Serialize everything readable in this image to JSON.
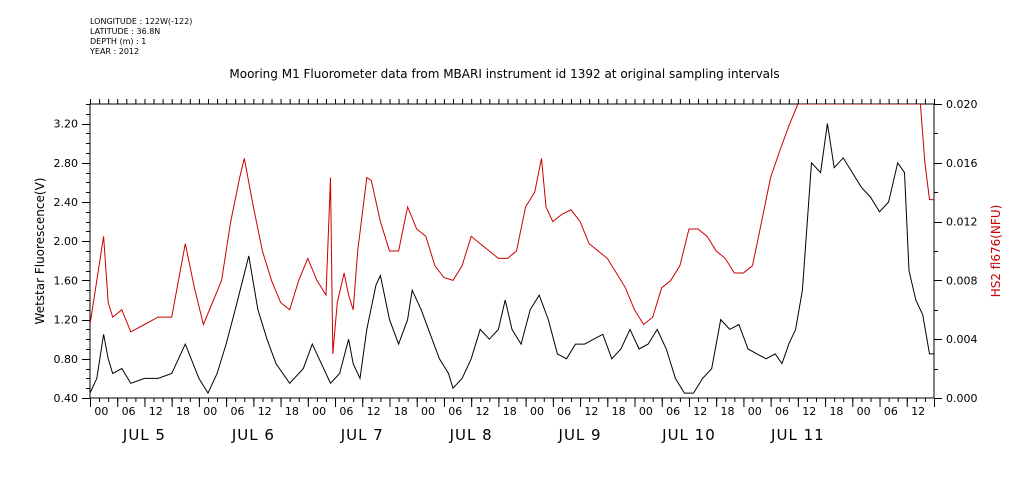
{
  "header": {
    "meta_lines": [
      "LONGITUDE : 122W(-122)",
      "LATITUDE : 36.8N",
      "DEPTH (m) : 1",
      "YEAR : 2012"
    ]
  },
  "chart_data": {
    "type": "line",
    "title": "Mooring M1 Fluorometer data from MBARI instrument id 1392 at original sampling intervals",
    "ylabel_left": "Wetstar Fluorescence(V)",
    "ylabel_right": "HS2 fl676(NFU)",
    "ylim_left": [
      0.4,
      3.4
    ],
    "yticks_left": [
      "0.40",
      "0.80",
      "1.20",
      "1.60",
      "2.00",
      "2.40",
      "2.80",
      "3.20"
    ],
    "ylim_right": [
      0.0,
      0.02
    ],
    "yticks_right": [
      "0.000",
      "0.004",
      "0.008",
      "0.012",
      "0.016",
      "0.020"
    ],
    "xlim_hours": [
      0,
      168
    ],
    "hour_ticks": [
      "00",
      "06",
      "12",
      "18"
    ],
    "days": [
      "JUL 5",
      "JUL 6",
      "JUL 7",
      "JUL 8",
      "JUL 9",
      "JUL 10",
      "JUL 11"
    ],
    "colors": {
      "wetstar": "#000000",
      "hs2": "#cc0000"
    },
    "series": [
      {
        "axis": "left",
        "points": [
          [
            0,
            0.45
          ],
          [
            1.5,
            0.6
          ],
          [
            3,
            1.05
          ],
          [
            4,
            0.8
          ],
          [
            5,
            0.65
          ],
          [
            7,
            0.7
          ],
          [
            9,
            0.55
          ],
          [
            12,
            0.6
          ],
          [
            15,
            0.6
          ],
          [
            18,
            0.65
          ],
          [
            21,
            0.95
          ],
          [
            24,
            0.6
          ],
          [
            26,
            0.45
          ],
          [
            28,
            0.65
          ],
          [
            30,
            0.95
          ],
          [
            32,
            1.3
          ],
          [
            35,
            1.85
          ],
          [
            37,
            1.3
          ],
          [
            39,
            1.0
          ],
          [
            41,
            0.75
          ],
          [
            44,
            0.55
          ],
          [
            47,
            0.7
          ],
          [
            49,
            0.95
          ],
          [
            51,
            0.75
          ],
          [
            53,
            0.55
          ],
          [
            55,
            0.65
          ],
          [
            57,
            1.0
          ],
          [
            58,
            0.75
          ],
          [
            59.5,
            0.6
          ],
          [
            61,
            1.1
          ],
          [
            63,
            1.55
          ],
          [
            64,
            1.65
          ],
          [
            66,
            1.2
          ],
          [
            68,
            0.95
          ],
          [
            70,
            1.2
          ],
          [
            71,
            1.5
          ],
          [
            73,
            1.3
          ],
          [
            75,
            1.05
          ],
          [
            77,
            0.8
          ],
          [
            79,
            0.65
          ],
          [
            80,
            0.5
          ],
          [
            82,
            0.6
          ],
          [
            84,
            0.8
          ],
          [
            86,
            1.1
          ],
          [
            88,
            1.0
          ],
          [
            90,
            1.1
          ],
          [
            91.5,
            1.4
          ],
          [
            93,
            1.1
          ],
          [
            95,
            0.95
          ],
          [
            97,
            1.3
          ],
          [
            99,
            1.45
          ],
          [
            101,
            1.2
          ],
          [
            103,
            0.85
          ],
          [
            105,
            0.8
          ],
          [
            107,
            0.95
          ],
          [
            109,
            0.95
          ],
          [
            111,
            1.0
          ],
          [
            113,
            1.05
          ],
          [
            115,
            0.8
          ],
          [
            117,
            0.9
          ],
          [
            119,
            1.1
          ],
          [
            121,
            0.9
          ],
          [
            123,
            0.95
          ],
          [
            125,
            1.1
          ],
          [
            127,
            0.9
          ],
          [
            129,
            0.6
          ],
          [
            131,
            0.45
          ],
          [
            133,
            0.45
          ],
          [
            135,
            0.6
          ],
          [
            137,
            0.7
          ],
          [
            139,
            1.2
          ],
          [
            141,
            1.1
          ],
          [
            143,
            1.15
          ],
          [
            145,
            0.9
          ],
          [
            147,
            0.85
          ],
          [
            149,
            0.8
          ],
          [
            151,
            0.85
          ],
          [
            152.5,
            0.75
          ],
          [
            154,
            0.95
          ],
          [
            155.5,
            1.1
          ],
          [
            157,
            1.5
          ],
          [
            159,
            2.8
          ],
          [
            161,
            2.7
          ],
          [
            162.5,
            3.2
          ],
          [
            164,
            2.75
          ],
          [
            166,
            2.85
          ],
          [
            168,
            2.7
          ],
          [
            170,
            2.55
          ],
          [
            172,
            2.45
          ],
          [
            174,
            2.3
          ],
          [
            176,
            2.4
          ],
          [
            178,
            2.8
          ],
          [
            179.5,
            2.7
          ],
          [
            180.5,
            1.7
          ],
          [
            182,
            1.4
          ],
          [
            183.5,
            1.25
          ],
          [
            185,
            0.85
          ],
          [
            186,
            0.85
          ]
        ]
      },
      {
        "axis": "right",
        "points": [
          [
            0,
            0.005
          ],
          [
            1.5,
            0.008
          ],
          [
            3,
            0.011
          ],
          [
            4,
            0.0065
          ],
          [
            5,
            0.0055
          ],
          [
            7,
            0.006
          ],
          [
            9,
            0.0045
          ],
          [
            12,
            0.005
          ],
          [
            15,
            0.0055
          ],
          [
            18,
            0.0055
          ],
          [
            21,
            0.0105
          ],
          [
            23,
            0.0075
          ],
          [
            25,
            0.005
          ],
          [
            27,
            0.0065
          ],
          [
            29,
            0.008
          ],
          [
            31,
            0.012
          ],
          [
            33,
            0.015
          ],
          [
            34,
            0.0163
          ],
          [
            36,
            0.013
          ],
          [
            38,
            0.01
          ],
          [
            40,
            0.008
          ],
          [
            42,
            0.0065
          ],
          [
            44,
            0.006
          ],
          [
            46,
            0.008
          ],
          [
            48,
            0.0095
          ],
          [
            50,
            0.008
          ],
          [
            52,
            0.007
          ],
          [
            53,
            0.015
          ],
          [
            53.5,
            0.003
          ],
          [
            54.5,
            0.0065
          ],
          [
            56,
            0.0085
          ],
          [
            57,
            0.007
          ],
          [
            58,
            0.006
          ],
          [
            59,
            0.01
          ],
          [
            61,
            0.015
          ],
          [
            62,
            0.0148
          ],
          [
            64,
            0.012
          ],
          [
            66,
            0.01
          ],
          [
            68,
            0.01
          ],
          [
            70,
            0.013
          ],
          [
            72,
            0.0115
          ],
          [
            74,
            0.011
          ],
          [
            76,
            0.009
          ],
          [
            78,
            0.0082
          ],
          [
            80,
            0.008
          ],
          [
            82,
            0.009
          ],
          [
            84,
            0.011
          ],
          [
            86,
            0.0105
          ],
          [
            88,
            0.01
          ],
          [
            90,
            0.0095
          ],
          [
            92,
            0.0095
          ],
          [
            94,
            0.01
          ],
          [
            96,
            0.013
          ],
          [
            98,
            0.014
          ],
          [
            99.5,
            0.0163
          ],
          [
            100.5,
            0.013
          ],
          [
            102,
            0.012
          ],
          [
            104,
            0.0125
          ],
          [
            106,
            0.0128
          ],
          [
            108,
            0.012
          ],
          [
            110,
            0.0105
          ],
          [
            112,
            0.01
          ],
          [
            114,
            0.0095
          ],
          [
            116,
            0.0085
          ],
          [
            118,
            0.0075
          ],
          [
            120,
            0.006
          ],
          [
            122,
            0.005
          ],
          [
            124,
            0.0055
          ],
          [
            126,
            0.0075
          ],
          [
            128,
            0.008
          ],
          [
            130,
            0.009
          ],
          [
            132,
            0.0115
          ],
          [
            134,
            0.0115
          ],
          [
            136,
            0.011
          ],
          [
            138,
            0.01
          ],
          [
            140,
            0.0095
          ],
          [
            142,
            0.0085
          ],
          [
            144,
            0.0085
          ],
          [
            146,
            0.009
          ],
          [
            148,
            0.012
          ],
          [
            150,
            0.015
          ],
          [
            152,
            0.0168
          ],
          [
            154,
            0.0185
          ],
          [
            156,
            0.02
          ],
          [
            158,
            0.02
          ],
          [
            160,
            0.02
          ],
          [
            162,
            0.02
          ],
          [
            164,
            0.02
          ],
          [
            166,
            0.02
          ],
          [
            168,
            0.02
          ],
          [
            170,
            0.02
          ],
          [
            172,
            0.02
          ],
          [
            174,
            0.02
          ],
          [
            176,
            0.02
          ],
          [
            178,
            0.02
          ],
          [
            180,
            0.02
          ],
          [
            182,
            0.02
          ],
          [
            183,
            0.02
          ],
          [
            184,
            0.016
          ],
          [
            185,
            0.0135
          ],
          [
            186,
            0.0135
          ]
        ]
      }
    ]
  }
}
